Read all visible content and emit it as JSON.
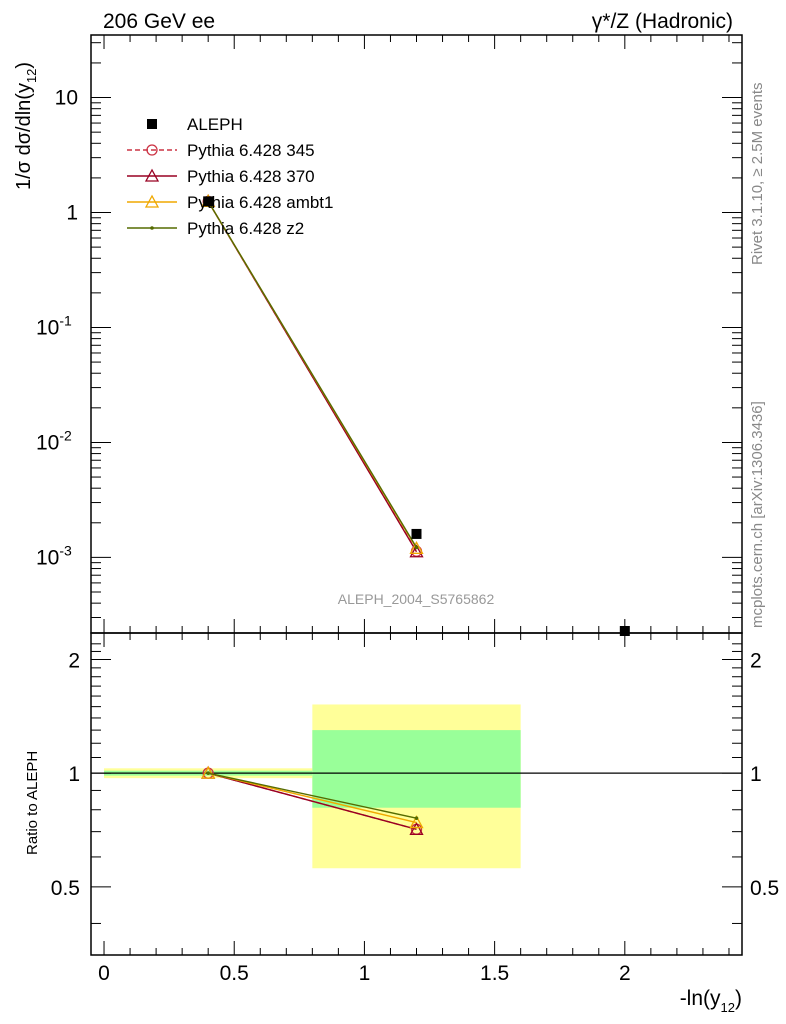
{
  "header": {
    "left": "206 GeV ee",
    "right": "γ*/Z (Hadronic)"
  },
  "side": {
    "rivet": "Rivet 3.1.10, ≥ 2.5M events",
    "mcplots": "mcplots.cern.ch [arXiv:1306.3436]"
  },
  "watermark": "ALEPH_2004_S5765862",
  "axes": {
    "ylabel_main_pre": "1/σ  dσ/dln(y",
    "ylabel_main_sub": "12",
    "ylabel_main_post": ")",
    "ylabel_ratio": "Ratio to ALEPH",
    "xlabel_pre": "-ln(y",
    "xlabel_sub": "12",
    "xlabel_post": ")",
    "x_ticks": [
      "0",
      "0.5",
      "1",
      "1.5",
      "2"
    ],
    "y_main_ticks": [
      {
        "mant": "10",
        "exp": "-3"
      },
      {
        "mant": "10",
        "exp": "-2"
      },
      {
        "mant": "10",
        "exp": "-1"
      },
      {
        "mant": "1",
        "exp": ""
      },
      {
        "mant": "10",
        "exp": ""
      }
    ],
    "y_ratio_ticks": [
      "0.5",
      "1",
      "2"
    ]
  },
  "legend": [
    {
      "label": "ALEPH",
      "color": "#000000",
      "marker": "square",
      "dash": false
    },
    {
      "label": "Pythia 6.428 345",
      "color": "#cc3344",
      "marker": "circle",
      "dash": true
    },
    {
      "label": "Pythia 6.428 370",
      "color": "#990022",
      "marker": "triangle",
      "dash": false
    },
    {
      "label": "Pythia 6.428 ambt1",
      "color": "#f0a800",
      "marker": "triangle",
      "dash": false
    },
    {
      "label": "Pythia 6.428 z2",
      "color": "#556b00",
      "marker": "dot",
      "dash": false
    }
  ],
  "chart_data": {
    "type": "line",
    "xlim": [
      -0.05,
      2.45
    ],
    "ylim_main": [
      0.00022,
      35
    ],
    "ylim_ratio": [
      0.33,
      2.35
    ],
    "log_y": true,
    "data": {
      "name": "ALEPH",
      "x": [
        0.4,
        1.2,
        2.0
      ],
      "y": [
        1.25,
        0.0016,
        0.00022
      ]
    },
    "ratio_bands": [
      {
        "xlo": 0.0,
        "xhi": 0.8,
        "inner": [
          0.985,
          1.015
        ],
        "outer": [
          0.97,
          1.03
        ]
      },
      {
        "xlo": 0.8,
        "xhi": 1.6,
        "inner": [
          0.81,
          1.3
        ],
        "outer": [
          0.56,
          1.52
        ]
      }
    ],
    "series": [
      {
        "name": "Pythia 6.428 345",
        "x": [
          0.4,
          1.2
        ],
        "y": [
          1.25,
          0.00113
        ],
        "ratio": [
          1.0,
          0.71
        ]
      },
      {
        "name": "Pythia 6.428 370",
        "x": [
          0.4,
          1.2
        ],
        "y": [
          1.25,
          0.00112
        ],
        "ratio": [
          1.0,
          0.71
        ]
      },
      {
        "name": "Pythia 6.428 ambt1",
        "x": [
          0.4,
          1.2
        ],
        "y": [
          1.25,
          0.0012
        ],
        "ratio": [
          1.0,
          0.74
        ]
      },
      {
        "name": "Pythia 6.428 z2",
        "x": [
          0.4,
          1.2
        ],
        "y": [
          1.25,
          0.00122
        ],
        "ratio": [
          1.0,
          0.76
        ]
      }
    ]
  }
}
